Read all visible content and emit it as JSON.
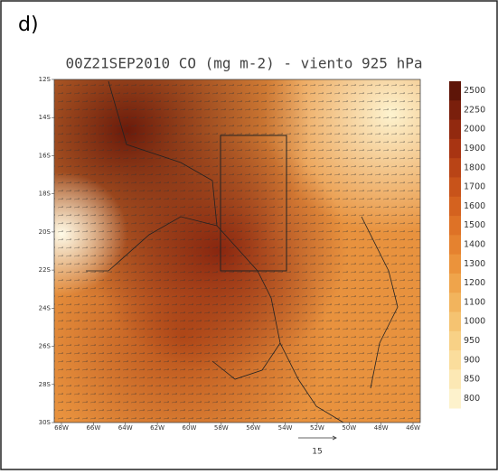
{
  "panel_label": "d)",
  "title": "00Z21SEP2010 CO (mg m-2) - viento 925 hPa",
  "map": {
    "lat_labels": [
      "12S",
      "14S",
      "16S",
      "18S",
      "20S",
      "22S",
      "24S",
      "26S",
      "28S",
      "30S"
    ],
    "lon_labels": [
      "68W",
      "66W",
      "64W",
      "62W",
      "60W",
      "58W",
      "56W",
      "54W",
      "52W",
      "50W",
      "48W",
      "46W"
    ]
  },
  "colorbar": {
    "labels": [
      2500,
      2250,
      2000,
      1900,
      1800,
      1700,
      1600,
      1500,
      1400,
      1300,
      1200,
      1100,
      1000,
      950,
      900,
      850,
      800
    ],
    "colors": [
      "#5e1508",
      "#7a1f0c",
      "#92290f",
      "#a83412",
      "#b94416",
      "#c8531a",
      "#d4621f",
      "#de7226",
      "#e5822f",
      "#eb933b",
      "#efa44b",
      "#f2b45d",
      "#f5c371",
      "#f8d186",
      "#fadd9c",
      "#fce8b4",
      "#fdf2cc"
    ]
  },
  "vector_scale": {
    "label": "15"
  }
}
